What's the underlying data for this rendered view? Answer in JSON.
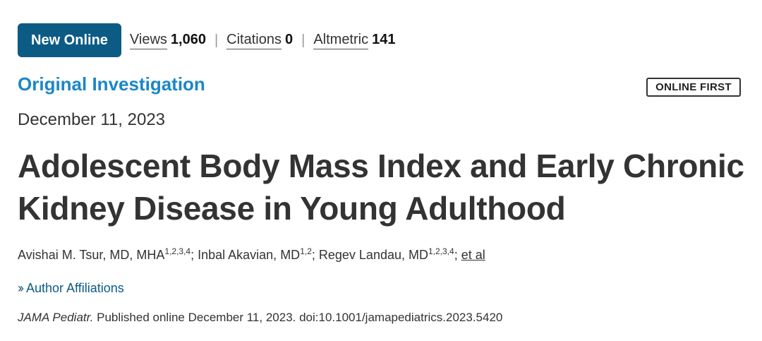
{
  "header": {
    "badge": "New Online",
    "metrics": [
      {
        "label": "Views",
        "value": "1,060"
      },
      {
        "label": "Citations",
        "value": "0"
      },
      {
        "label": "Altmetric",
        "value": "141"
      }
    ],
    "separator": "|"
  },
  "article": {
    "type": "Original Investigation",
    "online_first_badge": "ONLINE FIRST",
    "date": "December 11, 2023",
    "title": "Adolescent Body Mass Index and Early Chronic Kidney Disease in Young Adulthood",
    "authors": [
      {
        "name": "Avishai M. Tsur, MD, MHA",
        "affil": "1,2,3,4",
        "sep": "; "
      },
      {
        "name": "Inbal Akavian, MD",
        "affil": "1,2",
        "sep": "; "
      },
      {
        "name": "Regev Landau, MD",
        "affil": "1,2,3,4",
        "sep": "; "
      }
    ],
    "et_al": "et al",
    "affiliations_icon": "chevron-double-right-icon",
    "affiliations_label": "Author Affiliations",
    "citation_journal": "JAMA Pediatr.",
    "citation_text": " Published online December 11, 2023. doi:10.1001/jamapediatrics.2023.5420"
  },
  "colors": {
    "badge_bg": "#0c5b85",
    "article_type": "#1a87c7",
    "link": "#0c5b85"
  }
}
